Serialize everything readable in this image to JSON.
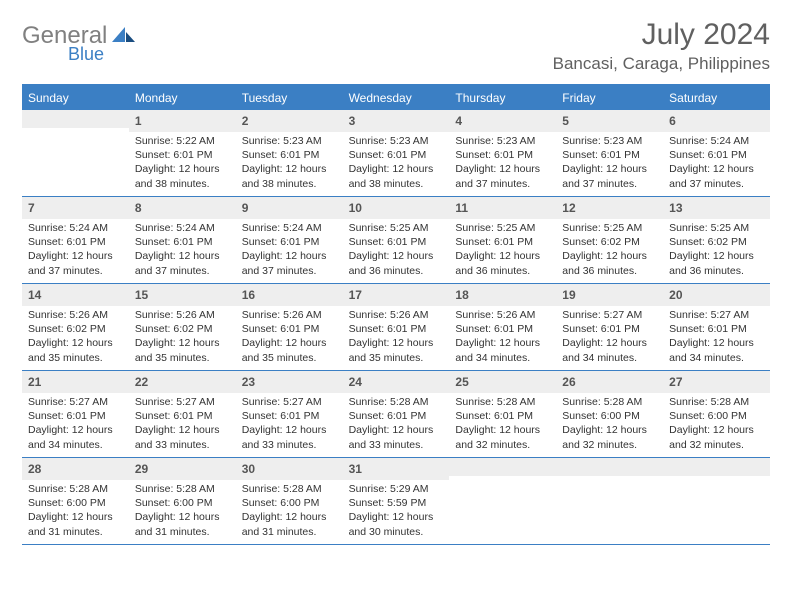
{
  "brand": {
    "name_part1": "General",
    "name_part2": "Blue",
    "colors": {
      "gray": "#808080",
      "blue": "#3b7fc4"
    }
  },
  "title": "July 2024",
  "location": "Bancasi, Caraga, Philippines",
  "colors": {
    "header_bg": "#3b7fc4",
    "header_text": "#ffffff",
    "daynum_bg": "#eeeeee",
    "border": "#3b7fc4",
    "text": "#333333"
  },
  "day_names": [
    "Sunday",
    "Monday",
    "Tuesday",
    "Wednesday",
    "Thursday",
    "Friday",
    "Saturday"
  ],
  "weeks": [
    [
      {
        "n": "",
        "sunrise": "",
        "sunset": "",
        "daylight": ""
      },
      {
        "n": "1",
        "sunrise": "Sunrise: 5:22 AM",
        "sunset": "Sunset: 6:01 PM",
        "daylight": "Daylight: 12 hours and 38 minutes."
      },
      {
        "n": "2",
        "sunrise": "Sunrise: 5:23 AM",
        "sunset": "Sunset: 6:01 PM",
        "daylight": "Daylight: 12 hours and 38 minutes."
      },
      {
        "n": "3",
        "sunrise": "Sunrise: 5:23 AM",
        "sunset": "Sunset: 6:01 PM",
        "daylight": "Daylight: 12 hours and 38 minutes."
      },
      {
        "n": "4",
        "sunrise": "Sunrise: 5:23 AM",
        "sunset": "Sunset: 6:01 PM",
        "daylight": "Daylight: 12 hours and 37 minutes."
      },
      {
        "n": "5",
        "sunrise": "Sunrise: 5:23 AM",
        "sunset": "Sunset: 6:01 PM",
        "daylight": "Daylight: 12 hours and 37 minutes."
      },
      {
        "n": "6",
        "sunrise": "Sunrise: 5:24 AM",
        "sunset": "Sunset: 6:01 PM",
        "daylight": "Daylight: 12 hours and 37 minutes."
      }
    ],
    [
      {
        "n": "7",
        "sunrise": "Sunrise: 5:24 AM",
        "sunset": "Sunset: 6:01 PM",
        "daylight": "Daylight: 12 hours and 37 minutes."
      },
      {
        "n": "8",
        "sunrise": "Sunrise: 5:24 AM",
        "sunset": "Sunset: 6:01 PM",
        "daylight": "Daylight: 12 hours and 37 minutes."
      },
      {
        "n": "9",
        "sunrise": "Sunrise: 5:24 AM",
        "sunset": "Sunset: 6:01 PM",
        "daylight": "Daylight: 12 hours and 37 minutes."
      },
      {
        "n": "10",
        "sunrise": "Sunrise: 5:25 AM",
        "sunset": "Sunset: 6:01 PM",
        "daylight": "Daylight: 12 hours and 36 minutes."
      },
      {
        "n": "11",
        "sunrise": "Sunrise: 5:25 AM",
        "sunset": "Sunset: 6:01 PM",
        "daylight": "Daylight: 12 hours and 36 minutes."
      },
      {
        "n": "12",
        "sunrise": "Sunrise: 5:25 AM",
        "sunset": "Sunset: 6:02 PM",
        "daylight": "Daylight: 12 hours and 36 minutes."
      },
      {
        "n": "13",
        "sunrise": "Sunrise: 5:25 AM",
        "sunset": "Sunset: 6:02 PM",
        "daylight": "Daylight: 12 hours and 36 minutes."
      }
    ],
    [
      {
        "n": "14",
        "sunrise": "Sunrise: 5:26 AM",
        "sunset": "Sunset: 6:02 PM",
        "daylight": "Daylight: 12 hours and 35 minutes."
      },
      {
        "n": "15",
        "sunrise": "Sunrise: 5:26 AM",
        "sunset": "Sunset: 6:02 PM",
        "daylight": "Daylight: 12 hours and 35 minutes."
      },
      {
        "n": "16",
        "sunrise": "Sunrise: 5:26 AM",
        "sunset": "Sunset: 6:01 PM",
        "daylight": "Daylight: 12 hours and 35 minutes."
      },
      {
        "n": "17",
        "sunrise": "Sunrise: 5:26 AM",
        "sunset": "Sunset: 6:01 PM",
        "daylight": "Daylight: 12 hours and 35 minutes."
      },
      {
        "n": "18",
        "sunrise": "Sunrise: 5:26 AM",
        "sunset": "Sunset: 6:01 PM",
        "daylight": "Daylight: 12 hours and 34 minutes."
      },
      {
        "n": "19",
        "sunrise": "Sunrise: 5:27 AM",
        "sunset": "Sunset: 6:01 PM",
        "daylight": "Daylight: 12 hours and 34 minutes."
      },
      {
        "n": "20",
        "sunrise": "Sunrise: 5:27 AM",
        "sunset": "Sunset: 6:01 PM",
        "daylight": "Daylight: 12 hours and 34 minutes."
      }
    ],
    [
      {
        "n": "21",
        "sunrise": "Sunrise: 5:27 AM",
        "sunset": "Sunset: 6:01 PM",
        "daylight": "Daylight: 12 hours and 34 minutes."
      },
      {
        "n": "22",
        "sunrise": "Sunrise: 5:27 AM",
        "sunset": "Sunset: 6:01 PM",
        "daylight": "Daylight: 12 hours and 33 minutes."
      },
      {
        "n": "23",
        "sunrise": "Sunrise: 5:27 AM",
        "sunset": "Sunset: 6:01 PM",
        "daylight": "Daylight: 12 hours and 33 minutes."
      },
      {
        "n": "24",
        "sunrise": "Sunrise: 5:28 AM",
        "sunset": "Sunset: 6:01 PM",
        "daylight": "Daylight: 12 hours and 33 minutes."
      },
      {
        "n": "25",
        "sunrise": "Sunrise: 5:28 AM",
        "sunset": "Sunset: 6:01 PM",
        "daylight": "Daylight: 12 hours and 32 minutes."
      },
      {
        "n": "26",
        "sunrise": "Sunrise: 5:28 AM",
        "sunset": "Sunset: 6:00 PM",
        "daylight": "Daylight: 12 hours and 32 minutes."
      },
      {
        "n": "27",
        "sunrise": "Sunrise: 5:28 AM",
        "sunset": "Sunset: 6:00 PM",
        "daylight": "Daylight: 12 hours and 32 minutes."
      }
    ],
    [
      {
        "n": "28",
        "sunrise": "Sunrise: 5:28 AM",
        "sunset": "Sunset: 6:00 PM",
        "daylight": "Daylight: 12 hours and 31 minutes."
      },
      {
        "n": "29",
        "sunrise": "Sunrise: 5:28 AM",
        "sunset": "Sunset: 6:00 PM",
        "daylight": "Daylight: 12 hours and 31 minutes."
      },
      {
        "n": "30",
        "sunrise": "Sunrise: 5:28 AM",
        "sunset": "Sunset: 6:00 PM",
        "daylight": "Daylight: 12 hours and 31 minutes."
      },
      {
        "n": "31",
        "sunrise": "Sunrise: 5:29 AM",
        "sunset": "Sunset: 5:59 PM",
        "daylight": "Daylight: 12 hours and 30 minutes."
      },
      {
        "n": "",
        "sunrise": "",
        "sunset": "",
        "daylight": ""
      },
      {
        "n": "",
        "sunrise": "",
        "sunset": "",
        "daylight": ""
      },
      {
        "n": "",
        "sunrise": "",
        "sunset": "",
        "daylight": ""
      }
    ]
  ]
}
